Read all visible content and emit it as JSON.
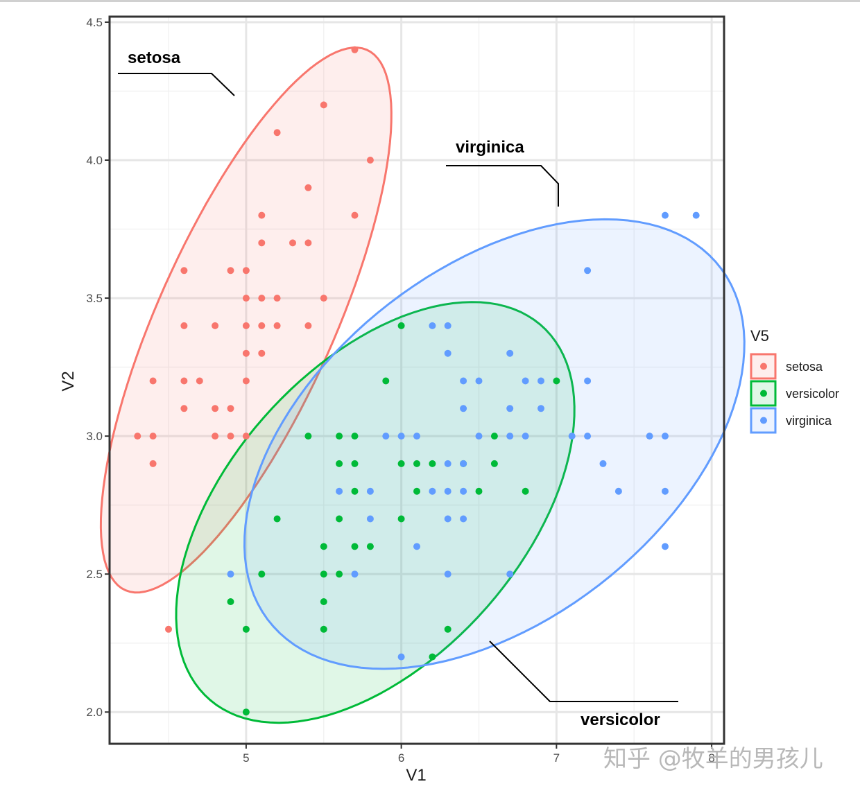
{
  "chart_data": {
    "type": "scatter",
    "title": "",
    "xlabel": "V1",
    "ylabel": "V2",
    "xlim": [
      4.12,
      8.08
    ],
    "ylim": [
      1.885,
      4.52
    ],
    "x_ticks": [
      5,
      6,
      7,
      8
    ],
    "x_tick_labels": [
      "5",
      "6",
      "7",
      "8"
    ],
    "y_ticks": [
      2.0,
      2.5,
      3.0,
      3.5,
      4.0,
      4.5
    ],
    "y_tick_labels": [
      "2.0",
      "2.5",
      "3.0",
      "3.5",
      "4.0",
      "4.5"
    ],
    "grid": true,
    "legend": {
      "title": "V5",
      "position": "right",
      "entries": [
        "setosa",
        "versicolor",
        "virginica"
      ]
    },
    "ellipses": "normal confidence ellipse per group",
    "series": [
      {
        "name": "setosa",
        "color": "#F8766D",
        "points": [
          [
            5.7,
            4.4
          ],
          [
            5.5,
            4.2
          ],
          [
            5.2,
            4.1
          ],
          [
            5.8,
            4.0
          ],
          [
            5.4,
            3.9
          ],
          [
            5.1,
            3.8
          ],
          [
            5.7,
            3.8
          ],
          [
            5.1,
            3.7
          ],
          [
            5.3,
            3.7
          ],
          [
            5.4,
            3.7
          ],
          [
            4.6,
            3.6
          ],
          [
            4.9,
            3.6
          ],
          [
            5.0,
            3.6
          ],
          [
            5.0,
            3.5
          ],
          [
            5.1,
            3.5
          ],
          [
            5.2,
            3.5
          ],
          [
            5.5,
            3.5
          ],
          [
            4.6,
            3.4
          ],
          [
            4.8,
            3.4
          ],
          [
            5.0,
            3.4
          ],
          [
            5.1,
            3.4
          ],
          [
            5.2,
            3.4
          ],
          [
            5.4,
            3.4
          ],
          [
            5.0,
            3.3
          ],
          [
            5.1,
            3.3
          ],
          [
            4.4,
            3.2
          ],
          [
            4.6,
            3.2
          ],
          [
            4.7,
            3.2
          ],
          [
            5.0,
            3.2
          ],
          [
            4.6,
            3.1
          ],
          [
            4.8,
            3.1
          ],
          [
            4.9,
            3.1
          ],
          [
            4.3,
            3.0
          ],
          [
            4.4,
            3.0
          ],
          [
            4.8,
            3.0
          ],
          [
            4.9,
            3.0
          ],
          [
            5.0,
            3.0
          ],
          [
            4.4,
            2.9
          ],
          [
            4.5,
            2.3
          ]
        ]
      },
      {
        "name": "versicolor",
        "color": "#00BA38",
        "points": [
          [
            6.0,
            3.4
          ],
          [
            5.9,
            3.2
          ],
          [
            7.0,
            3.2
          ],
          [
            5.4,
            3.0
          ],
          [
            5.6,
            3.0
          ],
          [
            5.7,
            3.0
          ],
          [
            6.6,
            3.0
          ],
          [
            5.6,
            2.9
          ],
          [
            5.7,
            2.9
          ],
          [
            6.0,
            2.9
          ],
          [
            6.1,
            2.9
          ],
          [
            6.2,
            2.9
          ],
          [
            6.4,
            2.9
          ],
          [
            6.6,
            2.9
          ],
          [
            5.7,
            2.8
          ],
          [
            6.1,
            2.8
          ],
          [
            6.5,
            2.8
          ],
          [
            6.8,
            2.8
          ],
          [
            5.2,
            2.7
          ],
          [
            5.6,
            2.7
          ],
          [
            6.0,
            2.7
          ],
          [
            5.5,
            2.6
          ],
          [
            5.7,
            2.6
          ],
          [
            5.8,
            2.6
          ],
          [
            5.1,
            2.5
          ],
          [
            5.5,
            2.5
          ],
          [
            5.6,
            2.5
          ],
          [
            4.9,
            2.4
          ],
          [
            5.5,
            2.4
          ],
          [
            5.0,
            2.3
          ],
          [
            5.5,
            2.3
          ],
          [
            6.3,
            2.3
          ],
          [
            6.2,
            2.2
          ],
          [
            5.0,
            2.0
          ]
        ]
      },
      {
        "name": "virginica",
        "color": "#619CFF",
        "points": [
          [
            7.7,
            3.8
          ],
          [
            7.9,
            3.8
          ],
          [
            7.2,
            3.6
          ],
          [
            6.2,
            3.4
          ],
          [
            6.3,
            3.4
          ],
          [
            6.3,
            3.3
          ],
          [
            6.7,
            3.3
          ],
          [
            6.4,
            3.2
          ],
          [
            6.5,
            3.2
          ],
          [
            6.8,
            3.2
          ],
          [
            6.9,
            3.2
          ],
          [
            7.2,
            3.2
          ],
          [
            6.4,
            3.1
          ],
          [
            6.7,
            3.1
          ],
          [
            6.9,
            3.1
          ],
          [
            5.9,
            3.0
          ],
          [
            6.0,
            3.0
          ],
          [
            6.1,
            3.0
          ],
          [
            6.5,
            3.0
          ],
          [
            6.7,
            3.0
          ],
          [
            6.8,
            3.0
          ],
          [
            7.1,
            3.0
          ],
          [
            7.2,
            3.0
          ],
          [
            7.6,
            3.0
          ],
          [
            7.7,
            3.0
          ],
          [
            6.3,
            2.9
          ],
          [
            6.4,
            2.9
          ],
          [
            7.3,
            2.9
          ],
          [
            5.6,
            2.8
          ],
          [
            5.8,
            2.8
          ],
          [
            6.2,
            2.8
          ],
          [
            6.3,
            2.8
          ],
          [
            6.4,
            2.8
          ],
          [
            7.4,
            2.8
          ],
          [
            7.7,
            2.8
          ],
          [
            5.8,
            2.7
          ],
          [
            6.3,
            2.7
          ],
          [
            6.4,
            2.7
          ],
          [
            6.1,
            2.6
          ],
          [
            7.7,
            2.6
          ],
          [
            4.9,
            2.5
          ],
          [
            5.7,
            2.5
          ],
          [
            6.3,
            2.5
          ],
          [
            6.7,
            2.5
          ],
          [
            6.0,
            2.2
          ]
        ]
      }
    ],
    "annotations": [
      {
        "label": "setosa",
        "series": "setosa"
      },
      {
        "label": "virginica",
        "series": "virginica"
      },
      {
        "label": "versicolor",
        "series": "versicolor"
      }
    ]
  },
  "watermark": "知乎 @牧羊的男孩儿"
}
